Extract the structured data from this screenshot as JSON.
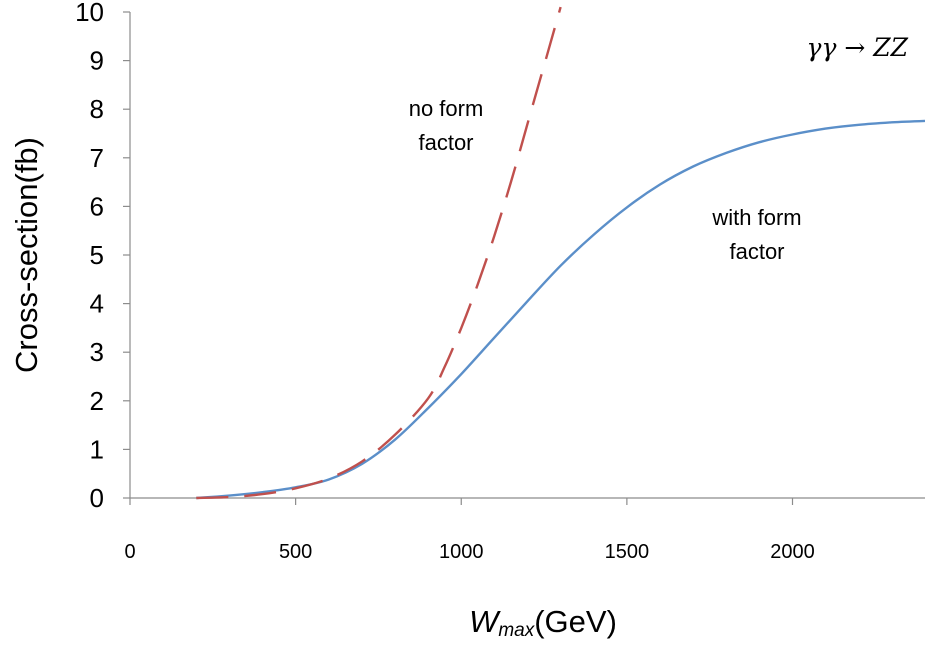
{
  "chart_data": {
    "type": "line",
    "xlabel": {
      "main": "W",
      "sub": "max",
      "unit": "(GeV)"
    },
    "ylabel": "Cross-section(fb)",
    "xlim": [
      0,
      2400
    ],
    "ylim": [
      0,
      10
    ],
    "x_ticks": [
      0,
      500,
      1000,
      1500,
      2000
    ],
    "y_ticks": [
      0,
      1,
      2,
      3,
      4,
      5,
      6,
      7,
      8,
      9,
      10
    ],
    "grid": false,
    "process_label": "γγ → ZZ",
    "annotations": {
      "no_form_factor": [
        "no form",
        "factor"
      ],
      "with_form_factor": [
        "with form",
        "factor"
      ]
    },
    "series": [
      {
        "key": "with_form_factor",
        "color": "#5b8fc9",
        "style": "solid",
        "x": [
          200,
          300,
          400,
          500,
          600,
          700,
          800,
          900,
          1000,
          1100,
          1200,
          1300,
          1400,
          1500,
          1600,
          1700,
          1800,
          1900,
          2000,
          2100,
          2200,
          2300,
          2400
        ],
        "y": [
          0.0,
          0.05,
          0.12,
          0.22,
          0.38,
          0.7,
          1.2,
          1.85,
          2.55,
          3.3,
          4.05,
          4.78,
          5.42,
          5.98,
          6.45,
          6.82,
          7.1,
          7.32,
          7.48,
          7.6,
          7.68,
          7.73,
          7.76
        ]
      },
      {
        "key": "no_form_factor",
        "color": "#c0504d",
        "style": "dashed",
        "x": [
          200,
          300,
          400,
          500,
          600,
          700,
          800,
          900,
          950,
          1000,
          1050,
          1100,
          1150,
          1200,
          1250,
          1300
        ],
        "y": [
          0.0,
          0.02,
          0.08,
          0.2,
          0.4,
          0.75,
          1.3,
          2.05,
          2.7,
          3.5,
          4.4,
          5.4,
          6.5,
          7.7,
          8.9,
          10.1
        ]
      }
    ]
  }
}
